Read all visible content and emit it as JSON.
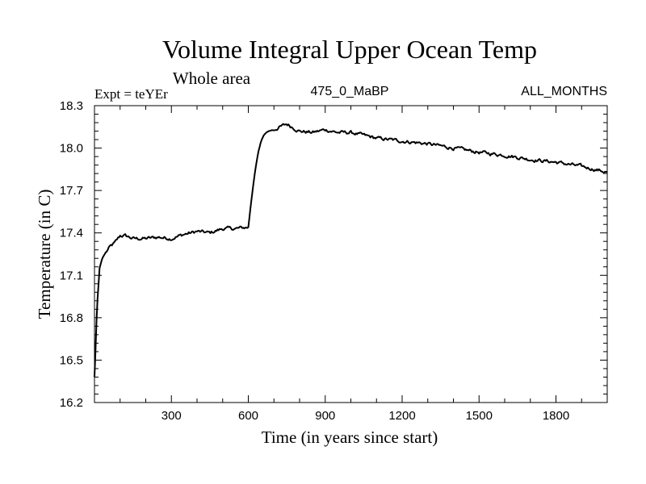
{
  "chart_data": {
    "type": "line",
    "title": "Volume Integral Upper Ocean Temp",
    "subtitle": "Whole area",
    "expt_label": "Expt = teYEr",
    "center_label": "475_0_MaBP",
    "right_label": "ALL_MONTHS",
    "xlabel": "Time (in years since start)",
    "ylabel": "Temperature (in C)",
    "xlim": [
      0,
      2000
    ],
    "ylim": [
      16.2,
      18.3
    ],
    "xticks": [
      300,
      600,
      900,
      1200,
      1500,
      1800
    ],
    "yticks": [
      16.2,
      16.5,
      16.8,
      17.1,
      17.4,
      17.7,
      18.0,
      18.3
    ],
    "xtick_labels": [
      "300",
      "600",
      "900",
      "1200",
      "1500",
      "1800"
    ],
    "ytick_labels": [
      "16.2",
      "16.5",
      "16.8",
      "17.1",
      "17.4",
      "17.7",
      "18.0",
      "18.3"
    ],
    "grid": false,
    "series": [
      {
        "name": "Upper Ocean Temp",
        "color": "#000000",
        "x": [
          0,
          5,
          10,
          20,
          30,
          40,
          60,
          80,
          100,
          120,
          150,
          200,
          250,
          300,
          350,
          400,
          450,
          500,
          550,
          600,
          610,
          620,
          630,
          640,
          650,
          660,
          670,
          680,
          700,
          750,
          800,
          850,
          900,
          950,
          1000,
          1100,
          1200,
          1300,
          1400,
          1500,
          1600,
          1700,
          1800,
          1900,
          2000
        ],
        "values": [
          16.38,
          16.62,
          16.88,
          17.15,
          17.22,
          17.25,
          17.3,
          17.33,
          17.38,
          17.38,
          17.36,
          17.36,
          17.37,
          17.36,
          17.39,
          17.41,
          17.4,
          17.43,
          17.43,
          17.44,
          17.6,
          17.75,
          17.88,
          17.98,
          18.05,
          18.09,
          18.11,
          18.12,
          18.13,
          18.17,
          18.12,
          18.11,
          18.13,
          18.11,
          18.11,
          18.07,
          18.05,
          18.03,
          18.0,
          17.97,
          17.95,
          17.92,
          17.9,
          17.87,
          17.83
        ]
      }
    ]
  }
}
